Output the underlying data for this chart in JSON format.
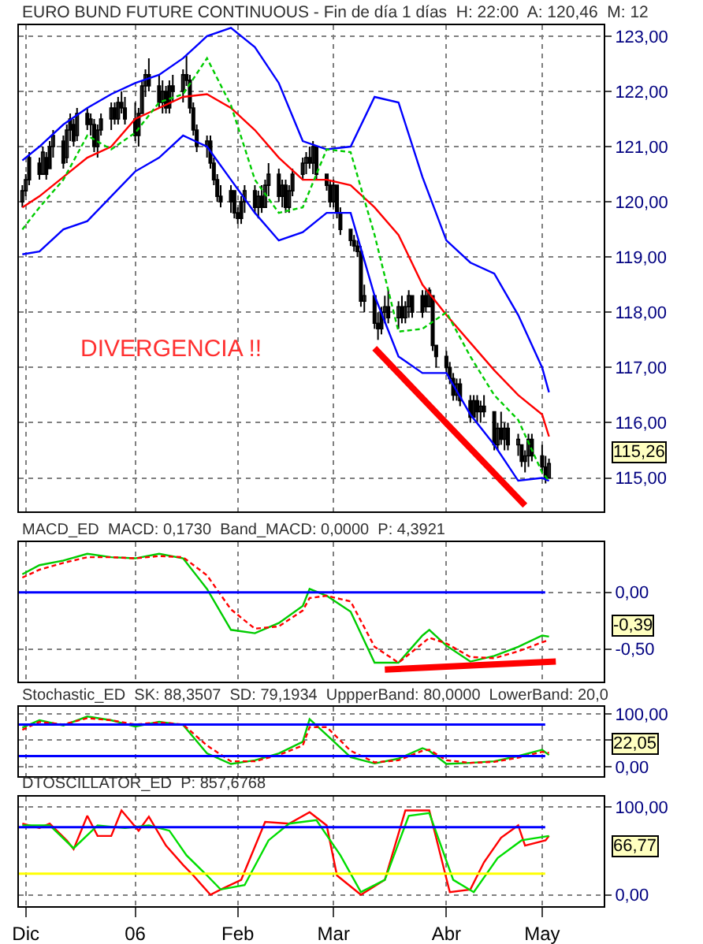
{
  "chart_data": [
    {
      "type": "candlestick",
      "title": "EURO BUND FUTURE CONTINUOUS - Fin de día 1 días  H: 22:00  A: 120,46  M: 12",
      "color": "#000000",
      "x": [
        "2005-11-30",
        "2005-12-01",
        "2005-12-02",
        "2005-12-05",
        "2005-12-06",
        "2005-12-07",
        "2005-12-08",
        "2005-12-09",
        "2005-12-12",
        "2005-12-13",
        "2005-12-14",
        "2005-12-15",
        "2005-12-16",
        "2005-12-19",
        "2005-12-20",
        "2005-12-21",
        "2005-12-22",
        "2005-12-23",
        "2005-12-26",
        "2005-12-27",
        "2005-12-28",
        "2005-12-29",
        "2005-12-30",
        "2006-01-02",
        "2006-01-03",
        "2006-01-04",
        "2006-01-05",
        "2006-01-06",
        "2006-01-09",
        "2006-01-10",
        "2006-01-11",
        "2006-01-12",
        "2006-01-13",
        "2006-01-16",
        "2006-01-17",
        "2006-01-18",
        "2006-01-19",
        "2006-01-20",
        "2006-01-23",
        "2006-01-24",
        "2006-01-25",
        "2006-01-26",
        "2006-01-27",
        "2006-01-30",
        "2006-01-31",
        "2006-02-01",
        "2006-02-02",
        "2006-02-03",
        "2006-02-06",
        "2006-02-07",
        "2006-02-08",
        "2006-02-09",
        "2006-02-10",
        "2006-02-13",
        "2006-02-14",
        "2006-02-15",
        "2006-02-16",
        "2006-02-17",
        "2006-02-20",
        "2006-02-21",
        "2006-02-22",
        "2006-02-23",
        "2006-02-24",
        "2006-02-27",
        "2006-02-28",
        "2006-03-01",
        "2006-03-02",
        "2006-03-03",
        "2006-03-06",
        "2006-03-07",
        "2006-03-08",
        "2006-03-09",
        "2006-03-10",
        "2006-03-13",
        "2006-03-14",
        "2006-03-15",
        "2006-03-16",
        "2006-03-17",
        "2006-03-20",
        "2006-03-21",
        "2006-03-22",
        "2006-03-23",
        "2006-03-24",
        "2006-03-27",
        "2006-03-28",
        "2006-03-29",
        "2006-03-30",
        "2006-03-31",
        "2006-04-03",
        "2006-04-04",
        "2006-04-05",
        "2006-04-06",
        "2006-04-07",
        "2006-04-10",
        "2006-04-11",
        "2006-04-12",
        "2006-04-13",
        "2006-04-14",
        "2006-04-17",
        "2006-04-18",
        "2006-04-19",
        "2006-04-20",
        "2006-04-21",
        "2006-04-24",
        "2006-04-25",
        "2006-04-26",
        "2006-04-27",
        "2006-04-28",
        "2006-05-01",
        "2006-05-02",
        "2006-05-03"
      ],
      "ohlc": [
        [
          120.0,
          120.3,
          119.9,
          120.2
        ],
        [
          120.2,
          120.5,
          120.1,
          120.4
        ],
        [
          120.4,
          120.9,
          120.3,
          120.8
        ],
        [
          120.7,
          120.8,
          120.4,
          120.5
        ],
        [
          120.5,
          121.0,
          120.5,
          120.9
        ],
        [
          120.8,
          120.9,
          120.4,
          120.5
        ],
        [
          120.6,
          121.1,
          120.6,
          121.0
        ],
        [
          121.0,
          121.3,
          120.8,
          121.2
        ],
        [
          121.1,
          121.2,
          120.6,
          120.7
        ],
        [
          120.8,
          121.4,
          120.7,
          121.3
        ],
        [
          121.3,
          121.6,
          121.1,
          121.5
        ],
        [
          121.4,
          121.5,
          121.0,
          121.1
        ],
        [
          121.2,
          121.7,
          121.1,
          121.6
        ],
        [
          121.6,
          121.7,
          121.3,
          121.4
        ],
        [
          121.4,
          121.6,
          121.2,
          121.5
        ],
        [
          121.4,
          121.5,
          120.9,
          121.0
        ],
        [
          121.0,
          121.4,
          120.8,
          121.3
        ],
        [
          121.3,
          121.6,
          121.2,
          121.5
        ],
        [
          121.5,
          121.8,
          121.3,
          121.7
        ],
        [
          121.7,
          121.8,
          121.4,
          121.5
        ],
        [
          121.5,
          121.9,
          121.4,
          121.8
        ],
        [
          121.8,
          122.0,
          121.6,
          121.7
        ],
        [
          121.7,
          121.9,
          121.4,
          121.5
        ],
        [
          121.5,
          121.8,
          121.1,
          121.2
        ],
        [
          121.2,
          121.7,
          121.0,
          121.6
        ],
        [
          121.6,
          122.2,
          121.6,
          122.1
        ],
        [
          122.1,
          122.4,
          121.9,
          122.3
        ],
        [
          122.3,
          122.6,
          122.0,
          122.1
        ],
        [
          122.1,
          122.3,
          121.7,
          121.8
        ],
        [
          121.8,
          122.2,
          121.6,
          122.0
        ],
        [
          122.0,
          122.1,
          121.6,
          121.7
        ],
        [
          121.7,
          122.2,
          121.6,
          122.1
        ],
        [
          122.1,
          122.3,
          121.8,
          122.0
        ],
        [
          122.0,
          122.4,
          121.8,
          122.3
        ],
        [
          122.3,
          122.65,
          122.1,
          122.2
        ],
        [
          122.2,
          122.3,
          121.6,
          121.7
        ],
        [
          121.7,
          121.8,
          121.2,
          121.3
        ],
        [
          121.3,
          121.4,
          120.9,
          121.0
        ],
        [
          121.0,
          121.2,
          120.8,
          121.1
        ],
        [
          121.1,
          121.2,
          120.6,
          120.7
        ],
        [
          120.7,
          120.8,
          120.3,
          120.4
        ],
        [
          120.4,
          120.5,
          120.0,
          120.1
        ],
        [
          120.1,
          120.3,
          119.9,
          120.0
        ],
        [
          120.0,
          120.3,
          119.8,
          120.2
        ],
        [
          120.2,
          120.2,
          119.7,
          119.8
        ],
        [
          119.8,
          119.9,
          119.6,
          119.7
        ],
        [
          119.7,
          120.1,
          119.6,
          120.0
        ],
        [
          120.0,
          120.3,
          119.8,
          120.2
        ],
        [
          120.2,
          120.3,
          119.8,
          119.9
        ],
        [
          119.9,
          120.2,
          119.7,
          120.1
        ],
        [
          120.1,
          120.3,
          119.8,
          119.9
        ],
        [
          119.9,
          120.4,
          119.9,
          120.3
        ],
        [
          120.3,
          120.7,
          120.1,
          120.5
        ],
        [
          120.5,
          120.6,
          120.0,
          120.1
        ],
        [
          120.1,
          120.4,
          119.9,
          120.3
        ],
        [
          120.3,
          120.4,
          119.8,
          119.9
        ],
        [
          119.9,
          120.3,
          119.8,
          120.2
        ],
        [
          120.2,
          120.6,
          120.1,
          120.5
        ],
        [
          120.5,
          120.8,
          120.4,
          120.7
        ],
        [
          120.7,
          120.9,
          120.5,
          120.8
        ],
        [
          120.8,
          121.0,
          120.6,
          120.7
        ],
        [
          120.7,
          121.1,
          120.5,
          121.0
        ],
        [
          121.0,
          121.0,
          120.4,
          120.5
        ],
        [
          120.5,
          120.5,
          120.2,
          120.3
        ],
        [
          120.3,
          120.4,
          119.9,
          120.0
        ],
        [
          120.0,
          120.4,
          119.9,
          120.3
        ],
        [
          120.3,
          120.3,
          119.7,
          119.8
        ],
        [
          119.8,
          119.9,
          119.4,
          119.5
        ],
        [
          119.5,
          119.5,
          119.2,
          119.3
        ],
        [
          119.3,
          119.4,
          119.1,
          119.2
        ],
        [
          119.2,
          119.3,
          119.0,
          119.1
        ],
        [
          119.1,
          119.2,
          118.1,
          118.2
        ],
        [
          118.2,
          118.5,
          118.0,
          118.3
        ],
        [
          118.3,
          118.3,
          117.7,
          117.8
        ],
        [
          117.8,
          118.0,
          117.5,
          117.7
        ],
        [
          117.7,
          118.1,
          117.6,
          118.0
        ],
        [
          118.0,
          118.3,
          117.8,
          118.1
        ],
        [
          118.1,
          118.4,
          117.8,
          117.9
        ],
        [
          117.9,
          118.2,
          117.7,
          118.1
        ],
        [
          118.1,
          118.3,
          117.8,
          117.9
        ],
        [
          117.9,
          118.2,
          117.8,
          118.1
        ],
        [
          118.1,
          118.4,
          117.9,
          118.3
        ],
        [
          118.3,
          118.3,
          117.9,
          118.0
        ],
        [
          118.0,
          118.4,
          117.9,
          118.3
        ],
        [
          118.3,
          118.4,
          118.0,
          118.1
        ],
        [
          118.1,
          118.45,
          118.1,
          118.4
        ],
        [
          118.3,
          118.3,
          117.3,
          117.4
        ],
        [
          117.4,
          117.4,
          117.0,
          117.2
        ],
        [
          117.2,
          117.3,
          116.9,
          117.0
        ],
        [
          117.0,
          117.1,
          116.7,
          116.8
        ],
        [
          116.8,
          116.9,
          116.4,
          116.5
        ],
        [
          116.5,
          116.8,
          116.4,
          116.7
        ],
        [
          116.7,
          116.8,
          116.3,
          116.4
        ],
        [
          116.4,
          116.5,
          116.0,
          116.1
        ],
        [
          116.1,
          116.5,
          116.1,
          116.4
        ],
        [
          116.4,
          116.5,
          116.0,
          116.2
        ],
        [
          116.2,
          116.4,
          116.0,
          116.3
        ],
        [
          116.3,
          116.5,
          116.1,
          116.2
        ],
        [
          116.2,
          116.2,
          115.5,
          115.6
        ],
        [
          115.6,
          116.0,
          115.5,
          115.9
        ],
        [
          115.9,
          116.2,
          115.6,
          115.7
        ],
        [
          115.7,
          116.0,
          115.5,
          115.9
        ],
        [
          115.9,
          116.0,
          115.5,
          115.6
        ],
        [
          115.6,
          115.8,
          115.4,
          115.7
        ],
        [
          115.6,
          115.6,
          115.2,
          115.3
        ],
        [
          115.3,
          115.5,
          115.1,
          115.4
        ],
        [
          115.4,
          115.8,
          115.2,
          115.7
        ],
        [
          115.7,
          115.8,
          115.3,
          115.4
        ],
        [
          115.4,
          115.6,
          115.1,
          115.2
        ],
        [
          115.2,
          115.4,
          114.9,
          115.0
        ],
        [
          115.0,
          115.35,
          115.0,
          115.26
        ]
      ],
      "series": [
        {
          "type": "line",
          "color": "#0000ff",
          "x": [
            "2005-11-30",
            "2005-12-05",
            "2005-12-12",
            "2005-12-19",
            "2005-12-26",
            "2006-01-02",
            "2006-01-09",
            "2006-01-16",
            "2006-01-23",
            "2006-01-30",
            "2006-02-06",
            "2006-02-13",
            "2006-02-20",
            "2006-02-27",
            "2006-03-06",
            "2006-03-13",
            "2006-03-20",
            "2006-03-27",
            "2006-04-03",
            "2006-04-10",
            "2006-04-17",
            "2006-04-24",
            "2006-05-01",
            "2006-05-03"
          ],
          "values": [
            120.75,
            121.0,
            121.4,
            121.7,
            121.95,
            122.15,
            122.3,
            122.6,
            123.0,
            123.15,
            122.8,
            122.15,
            121.1,
            120.95,
            121.0,
            121.9,
            121.8,
            120.45,
            119.3,
            118.9,
            118.7,
            117.95,
            117.0,
            116.55
          ]
        },
        {
          "type": "line",
          "color": "#ff0000",
          "x": [
            "2005-11-30",
            "2005-12-05",
            "2005-12-12",
            "2005-12-19",
            "2005-12-26",
            "2006-01-02",
            "2006-01-09",
            "2006-01-16",
            "2006-01-23",
            "2006-01-30",
            "2006-02-06",
            "2006-02-13",
            "2006-02-20",
            "2006-02-27",
            "2006-03-06",
            "2006-03-13",
            "2006-03-20",
            "2006-03-27",
            "2006-04-03",
            "2006-04-10",
            "2006-04-17",
            "2006-04-24",
            "2006-05-01",
            "2006-05-03"
          ],
          "values": [
            119.9,
            120.1,
            120.45,
            120.8,
            121.0,
            121.5,
            121.7,
            121.9,
            121.95,
            121.7,
            121.3,
            120.8,
            120.4,
            120.4,
            120.3,
            119.9,
            119.4,
            118.5,
            117.95,
            117.45,
            116.95,
            116.5,
            116.15,
            115.75
          ]
        },
        {
          "type": "line",
          "color": "#0000ff",
          "x": [
            "2005-11-30",
            "2005-12-05",
            "2005-12-12",
            "2005-12-19",
            "2005-12-26",
            "2006-01-02",
            "2006-01-09",
            "2006-01-16",
            "2006-01-23",
            "2006-01-30",
            "2006-02-06",
            "2006-02-13",
            "2006-02-20",
            "2006-02-27",
            "2006-03-06",
            "2006-03-13",
            "2006-03-20",
            "2006-03-27",
            "2006-04-03",
            "2006-04-10",
            "2006-04-17",
            "2006-04-24",
            "2006-05-01",
            "2006-05-03"
          ],
          "values": [
            119.05,
            119.1,
            119.5,
            119.65,
            120.1,
            120.55,
            120.8,
            121.2,
            121.0,
            120.4,
            119.8,
            119.3,
            119.45,
            119.8,
            119.8,
            118.3,
            117.2,
            116.9,
            116.9,
            116.15,
            115.6,
            114.95,
            115.0,
            114.95
          ]
        },
        {
          "type": "line",
          "color": "#00cc00",
          "line_style": "dashed",
          "x": [
            "2005-11-30",
            "2005-12-05",
            "2005-12-12",
            "2005-12-19",
            "2005-12-26",
            "2006-01-02",
            "2006-01-09",
            "2006-01-16",
            "2006-01-23",
            "2006-01-30",
            "2006-02-06",
            "2006-02-13",
            "2006-02-20",
            "2006-02-27",
            "2006-03-06",
            "2006-03-13",
            "2006-03-20",
            "2006-03-27",
            "2006-04-03",
            "2006-04-10",
            "2006-04-17",
            "2006-04-24",
            "2006-05-01",
            "2006-05-03"
          ],
          "values": [
            119.5,
            119.9,
            120.4,
            121.2,
            120.95,
            121.25,
            121.8,
            121.95,
            122.6,
            121.75,
            120.4,
            119.8,
            119.9,
            120.95,
            120.9,
            119.4,
            117.65,
            117.7,
            118.0,
            117.2,
            116.5,
            116.05,
            115.1,
            114.95
          ]
        },
        {
          "type": "line",
          "color": "#ff0000",
          "x": [
            "2006-03-13",
            "2006-04-26"
          ],
          "values": [
            117.35,
            114.5
          ]
        }
      ],
      "xlim": [
        "2005-11-29",
        "2006-05-19"
      ],
      "xticks": [
        {
          "value": "2005-12-01",
          "label": null
        },
        {
          "value": "2006-01-02",
          "label": null
        },
        {
          "value": "2006-02-01",
          "label": null
        },
        {
          "value": "2006-03-01",
          "label": null
        },
        {
          "value": "2006-04-03",
          "label": null
        },
        {
          "value": "2006-05-01",
          "label": null
        }
      ],
      "ylim": [
        114.4,
        123.2
      ],
      "yticks": [
        {
          "value": 115,
          "label": "115,00"
        },
        {
          "value": 116,
          "label": "116,00"
        },
        {
          "value": 117,
          "label": "117,00"
        },
        {
          "value": 118,
          "label": "118,00"
        },
        {
          "value": 119,
          "label": "119,00"
        },
        {
          "value": 120,
          "label": "120,00"
        },
        {
          "value": 121,
          "label": "121,00"
        },
        {
          "value": 122,
          "label": "122,00"
        },
        {
          "value": 123,
          "label": "123,00"
        }
      ],
      "grid": true,
      "tick_labels": "y",
      "annotations": [
        "DIVERGENCIA !!",
        "115,26"
      ]
    },
    {
      "type": "line",
      "title": "MACD_ED  MACD: 0,1730  Band_MACD: 0,0000  P: 4,3921",
      "series": [
        {
          "color": "#00cc00",
          "x": [
            "2005-11-30",
            "2005-12-05",
            "2005-12-12",
            "2005-12-19",
            "2005-12-26",
            "2006-01-02",
            "2006-01-09",
            "2006-01-16",
            "2006-01-23",
            "2006-01-30",
            "2006-02-06",
            "2006-02-13",
            "2006-02-20",
            "2006-02-22",
            "2006-02-27",
            "2006-03-06",
            "2006-03-13",
            "2006-03-20",
            "2006-03-27",
            "2006-03-29",
            "2006-04-03",
            "2006-04-10",
            "2006-04-17",
            "2006-04-24",
            "2006-05-01",
            "2006-05-03"
          ],
          "values": [
            0.16,
            0.24,
            0.28,
            0.34,
            0.31,
            0.3,
            0.34,
            0.3,
            0.03,
            -0.33,
            -0.36,
            -0.27,
            -0.12,
            0.03,
            -0.03,
            -0.17,
            -0.62,
            -0.62,
            -0.38,
            -0.33,
            -0.47,
            -0.61,
            -0.56,
            -0.48,
            -0.38,
            -0.39
          ]
        },
        {
          "color": "#ff0000",
          "line_style": "dashed",
          "x": [
            "2005-11-30",
            "2005-12-05",
            "2005-12-12",
            "2005-12-19",
            "2005-12-26",
            "2006-01-02",
            "2006-01-09",
            "2006-01-16",
            "2006-01-23",
            "2006-01-30",
            "2006-02-06",
            "2006-02-13",
            "2006-02-20",
            "2006-02-22",
            "2006-02-27",
            "2006-03-06",
            "2006-03-13",
            "2006-03-20",
            "2006-03-27",
            "2006-03-29",
            "2006-04-03",
            "2006-04-10",
            "2006-04-17",
            "2006-04-24",
            "2006-05-01",
            "2006-05-03"
          ],
          "values": [
            0.13,
            0.2,
            0.26,
            0.31,
            0.31,
            0.3,
            0.32,
            0.31,
            0.15,
            -0.15,
            -0.32,
            -0.3,
            -0.16,
            -0.05,
            -0.03,
            -0.08,
            -0.48,
            -0.62,
            -0.45,
            -0.4,
            -0.45,
            -0.57,
            -0.58,
            -0.52,
            -0.44,
            -0.42
          ]
        },
        {
          "color": "#ff0000",
          "x": [
            "2006-03-16",
            "2006-05-05"
          ],
          "values": [
            -0.68,
            -0.61
          ]
        }
      ],
      "ref_lines": [
        {
          "axis": "y",
          "value": 0,
          "color": "#0000ff"
        }
      ],
      "xlim": [
        "2005-11-29",
        "2006-05-19"
      ],
      "xticks": [
        {
          "value": "2005-12-01",
          "label": null
        },
        {
          "value": "2006-01-02",
          "label": null
        },
        {
          "value": "2006-02-01",
          "label": null
        },
        {
          "value": "2006-03-01",
          "label": null
        },
        {
          "value": "2006-04-03",
          "label": null
        },
        {
          "value": "2006-05-01",
          "label": null
        }
      ],
      "ylim": [
        -0.79,
        0.44
      ],
      "yticks": [
        {
          "value": -0.5,
          "label": "-0,50"
        },
        {
          "value": 0,
          "label": "0,00"
        }
      ],
      "grid": true,
      "tick_labels": "y",
      "annotations": [
        "-0,39"
      ]
    },
    {
      "type": "line",
      "title": "Stochastic_ED  SK: 88,3507  SD: 79,1934  UppperBand: 80,0000  LowerBand: 20,0",
      "series": [
        {
          "color": "#00cc00",
          "x": [
            "2005-11-30",
            "2005-12-05",
            "2005-12-12",
            "2005-12-19",
            "2005-12-26",
            "2006-01-02",
            "2006-01-09",
            "2006-01-16",
            "2006-01-23",
            "2006-01-30",
            "2006-02-06",
            "2006-02-13",
            "2006-02-20",
            "2006-02-22",
            "2006-02-27",
            "2006-03-06",
            "2006-03-13",
            "2006-03-20",
            "2006-03-27",
            "2006-03-29",
            "2006-04-03",
            "2006-04-10",
            "2006-04-17",
            "2006-04-24",
            "2006-05-01",
            "2006-05-03"
          ],
          "values": [
            74,
            88,
            78,
            95,
            88,
            76,
            85,
            79,
            25,
            5,
            12,
            25,
            47,
            90,
            60,
            18,
            6,
            15,
            35,
            30,
            5,
            7,
            10,
            20,
            32,
            22
          ]
        },
        {
          "color": "#ff0000",
          "line_style": "dashed",
          "x": [
            "2005-11-30",
            "2005-12-05",
            "2005-12-12",
            "2005-12-19",
            "2005-12-26",
            "2006-01-02",
            "2006-01-09",
            "2006-01-16",
            "2006-01-23",
            "2006-01-30",
            "2006-02-06",
            "2006-02-13",
            "2006-02-20",
            "2006-02-22",
            "2006-02-27",
            "2006-03-06",
            "2006-03-13",
            "2006-03-20",
            "2006-03-27",
            "2006-03-29",
            "2006-04-03",
            "2006-04-10",
            "2006-04-17",
            "2006-04-24",
            "2006-05-01",
            "2006-05-03"
          ],
          "values": [
            70,
            85,
            80,
            92,
            88,
            80,
            84,
            80,
            40,
            10,
            10,
            22,
            40,
            75,
            75,
            30,
            8,
            12,
            30,
            32,
            12,
            7,
            9,
            17,
            28,
            26
          ]
        }
      ],
      "ref_lines": [
        {
          "axis": "y",
          "value": 80,
          "color": "#0000ff"
        },
        {
          "axis": "y",
          "value": 20,
          "color": "#0000ff"
        }
      ],
      "xlim": [
        "2005-11-29",
        "2006-05-19"
      ],
      "xticks": [
        {
          "value": "2005-12-01",
          "label": null
        },
        {
          "value": "2006-01-02",
          "label": null
        },
        {
          "value": "2006-02-01",
          "label": null
        },
        {
          "value": "2006-03-01",
          "label": null
        },
        {
          "value": "2006-04-03",
          "label": null
        },
        {
          "value": "2006-05-01",
          "label": null
        }
      ],
      "ylim": [
        -18,
        113
      ],
      "yticks": [
        {
          "value": 0,
          "label": "0,00"
        },
        {
          "value": 50,
          "label": null
        },
        {
          "value": 100,
          "label": "100,00"
        }
      ],
      "grid": true,
      "tick_labels": "y",
      "annotations": [
        "22,05"
      ]
    },
    {
      "type": "line",
      "title": "DTOSCILLATOR_ED  P: 857,6768",
      "series": [
        {
          "color": "#ff0000",
          "x": [
            "2005-11-30",
            "2005-12-05",
            "2005-12-08",
            "2005-12-13",
            "2005-12-15",
            "2005-12-19",
            "2005-12-22",
            "2005-12-26",
            "2005-12-29",
            "2006-01-03",
            "2006-01-06",
            "2006-01-11",
            "2006-01-16",
            "2006-01-19",
            "2006-01-24",
            "2006-01-27",
            "2006-02-02",
            "2006-02-09",
            "2006-02-16",
            "2006-02-22",
            "2006-02-27",
            "2006-03-02",
            "2006-03-09",
            "2006-03-16",
            "2006-03-22",
            "2006-03-29",
            "2006-04-04",
            "2006-04-10",
            "2006-04-14",
            "2006-04-19",
            "2006-04-24",
            "2006-04-26",
            "2006-05-02",
            "2006-05-03"
          ],
          "values": [
            81,
            76,
            81,
            62,
            52,
            90,
            67,
            67,
            96,
            73,
            89,
            56,
            34,
            22,
            0,
            6,
            17,
            83,
            81,
            94,
            79,
            22,
            0,
            17,
            96,
            96,
            3,
            6,
            37,
            65,
            79,
            56,
            62,
            67
          ]
        },
        {
          "color": "#00dd00",
          "x": [
            "2005-11-30",
            "2005-12-08",
            "2005-12-15",
            "2005-12-22",
            "2005-12-30",
            "2006-01-06",
            "2006-01-12",
            "2006-01-17",
            "2006-01-23",
            "2006-01-27",
            "2006-02-03",
            "2006-02-10",
            "2006-02-16",
            "2006-02-24",
            "2006-03-03",
            "2006-03-09",
            "2006-03-16",
            "2006-03-23",
            "2006-03-29",
            "2006-04-05",
            "2006-04-11",
            "2006-04-18",
            "2006-04-25",
            "2006-05-03"
          ],
          "values": [
            79,
            79,
            53,
            79,
            76,
            79,
            73,
            45,
            22,
            6,
            11,
            62,
            81,
            85,
            45,
            3,
            17,
            90,
            93,
            17,
            3,
            42,
            62,
            67
          ]
        }
      ],
      "ref_lines": [
        {
          "axis": "y",
          "value": 77,
          "color": "#0000ff"
        },
        {
          "axis": "y",
          "value": 24,
          "color": "#ffff00"
        }
      ],
      "xlim": [
        "2005-11-29",
        "2006-05-19"
      ],
      "xticks": [
        {
          "value": "2005-12-01",
          "label": "Dic"
        },
        {
          "value": "2006-01-02",
          "label": "06"
        },
        {
          "value": "2006-02-01",
          "label": "Feb"
        },
        {
          "value": "2006-03-01",
          "label": "Mar"
        },
        {
          "value": "2006-04-03",
          "label": "Abr"
        },
        {
          "value": "2006-05-01",
          "label": "May"
        }
      ],
      "ylim": [
        -13,
        112
      ],
      "yticks": [
        {
          "value": 0,
          "label": "0,00"
        },
        {
          "value": 100,
          "label": "100,00"
        }
      ],
      "grid": true,
      "annotations": [
        "66,77"
      ]
    }
  ]
}
